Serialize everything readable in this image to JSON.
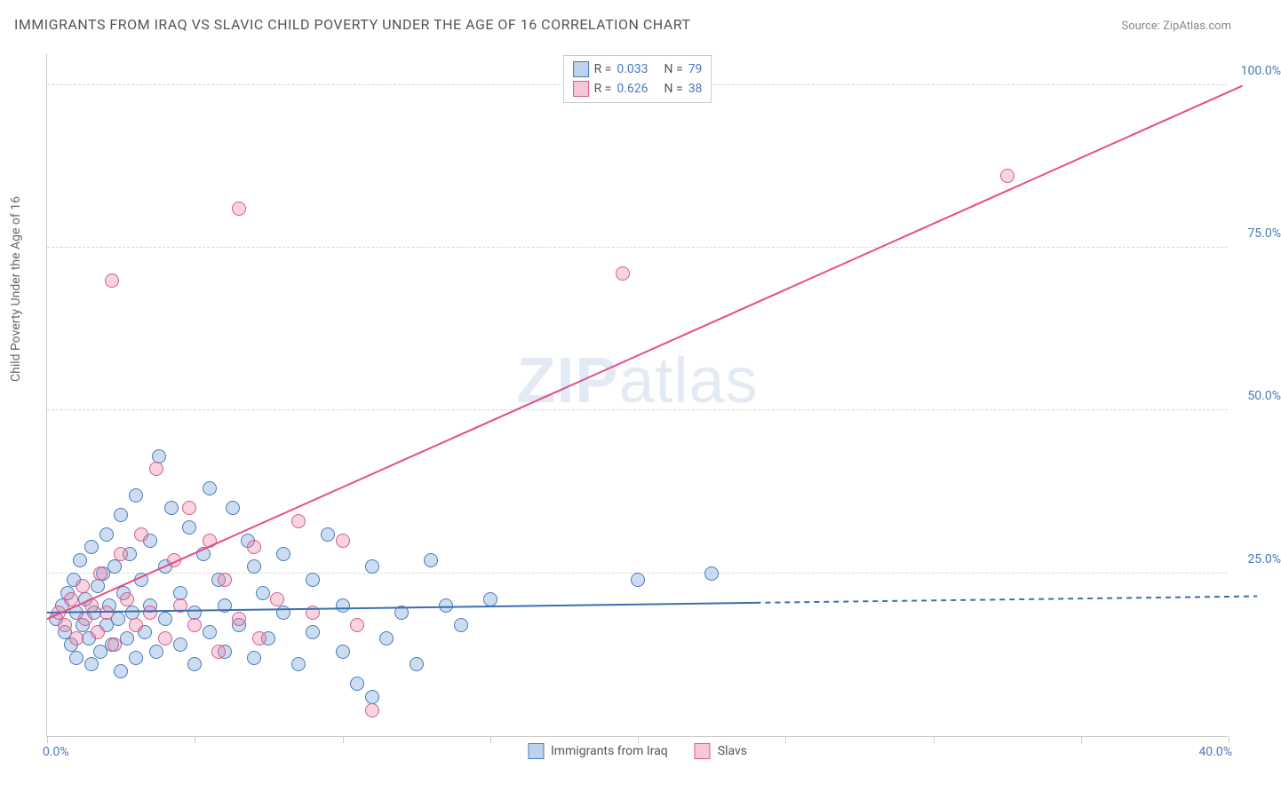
{
  "title": "IMMIGRANTS FROM IRAQ VS SLAVIC CHILD POVERTY UNDER THE AGE OF 16 CORRELATION CHART",
  "source_label": "Source: ZipAtlas.com",
  "y_axis_label": "Child Poverty Under the Age of 16",
  "watermark_bold": "ZIP",
  "watermark_light": "atlas",
  "chart": {
    "type": "scatter",
    "xlim": [
      0,
      40
    ],
    "ylim": [
      0,
      105
    ],
    "x_tick_positions": [
      0,
      5,
      10,
      15,
      20,
      25,
      30,
      35,
      40
    ],
    "x_tick_labels_shown": {
      "left": "0.0%",
      "right": "40.0%"
    },
    "y_ticks": [
      {
        "v": 25,
        "label": "25.0%"
      },
      {
        "v": 50,
        "label": "50.0%"
      },
      {
        "v": 75,
        "label": "75.0%"
      },
      {
        "v": 100,
        "label": "100.0%"
      }
    ],
    "grid_y": [
      25,
      50,
      75,
      100
    ],
    "grid_color": "#d8d8d8",
    "background_color": "#ffffff",
    "point_radius": 8,
    "point_border_width": 1.5,
    "series": [
      {
        "name": "Immigrants from Iraq",
        "fill_color": "rgba(109,158,214,0.35)",
        "stroke_color": "#4a7ab8",
        "legend_swatch_fill": "rgba(109,158,214,0.45)",
        "legend_swatch_stroke": "#4a7ab8",
        "R_label": "R =",
        "R_value": "0.033",
        "N_label": "N =",
        "N_value": "79",
        "regression": {
          "solid": {
            "x1": 0,
            "y1": 19,
            "x2": 24,
            "y2": 20.5
          },
          "dashed": {
            "x1": 24,
            "y1": 20.5,
            "x2": 41,
            "y2": 21.5
          },
          "color": "#3a6fb0",
          "width": 2
        },
        "points": [
          [
            0.3,
            18
          ],
          [
            0.5,
            20
          ],
          [
            0.6,
            16
          ],
          [
            0.7,
            22
          ],
          [
            0.8,
            14
          ],
          [
            0.9,
            24
          ],
          [
            1.0,
            19
          ],
          [
            1.0,
            12
          ],
          [
            1.1,
            27
          ],
          [
            1.2,
            17
          ],
          [
            1.3,
            21
          ],
          [
            1.4,
            15
          ],
          [
            1.5,
            29
          ],
          [
            1.5,
            11
          ],
          [
            1.6,
            19
          ],
          [
            1.7,
            23
          ],
          [
            1.8,
            13
          ],
          [
            1.9,
            25
          ],
          [
            2.0,
            17
          ],
          [
            2.0,
            31
          ],
          [
            2.1,
            20
          ],
          [
            2.2,
            14
          ],
          [
            2.3,
            26
          ],
          [
            2.4,
            18
          ],
          [
            2.5,
            34
          ],
          [
            2.5,
            10
          ],
          [
            2.6,
            22
          ],
          [
            2.7,
            15
          ],
          [
            2.8,
            28
          ],
          [
            2.9,
            19
          ],
          [
            3.0,
            12
          ],
          [
            3.0,
            37
          ],
          [
            3.2,
            24
          ],
          [
            3.3,
            16
          ],
          [
            3.5,
            30
          ],
          [
            3.5,
            20
          ],
          [
            3.7,
            13
          ],
          [
            3.8,
            43
          ],
          [
            4.0,
            26
          ],
          [
            4.0,
            18
          ],
          [
            4.2,
            35
          ],
          [
            4.5,
            22
          ],
          [
            4.5,
            14
          ],
          [
            4.8,
            32
          ],
          [
            5.0,
            19
          ],
          [
            5.0,
            11
          ],
          [
            5.3,
            28
          ],
          [
            5.5,
            38
          ],
          [
            5.5,
            16
          ],
          [
            5.8,
            24
          ],
          [
            6.0,
            20
          ],
          [
            6.0,
            13
          ],
          [
            6.3,
            35
          ],
          [
            6.5,
            17
          ],
          [
            6.8,
            30
          ],
          [
            7.0,
            26
          ],
          [
            7.0,
            12
          ],
          [
            7.3,
            22
          ],
          [
            7.5,
            15
          ],
          [
            8.0,
            28
          ],
          [
            8.0,
            19
          ],
          [
            8.5,
            11
          ],
          [
            9.0,
            24
          ],
          [
            9.0,
            16
          ],
          [
            9.5,
            31
          ],
          [
            10.0,
            13
          ],
          [
            10.0,
            20
          ],
          [
            10.5,
            8
          ],
          [
            11.0,
            26
          ],
          [
            11.0,
            6
          ],
          [
            11.5,
            15
          ],
          [
            12.0,
            19
          ],
          [
            12.5,
            11
          ],
          [
            13.0,
            27
          ],
          [
            13.5,
            20
          ],
          [
            14.0,
            17
          ],
          [
            15.0,
            21
          ],
          [
            20.0,
            24
          ],
          [
            22.5,
            25
          ]
        ]
      },
      {
        "name": "Slavs",
        "fill_color": "rgba(235,130,165,0.35)",
        "stroke_color": "#d85a8a",
        "legend_swatch_fill": "rgba(235,130,165,0.45)",
        "legend_swatch_stroke": "#d85a8a",
        "R_label": "R =",
        "R_value": "0.626",
        "N_label": "N =",
        "N_value": "38",
        "regression": {
          "solid": {
            "x1": 0,
            "y1": 18,
            "x2": 40.5,
            "y2": 100
          },
          "dashed": null,
          "color": "#e84b8a",
          "width": 2
        },
        "points": [
          [
            0.4,
            19
          ],
          [
            0.6,
            17
          ],
          [
            0.8,
            21
          ],
          [
            1.0,
            15
          ],
          [
            1.2,
            23
          ],
          [
            1.3,
            18
          ],
          [
            1.5,
            20
          ],
          [
            1.7,
            16
          ],
          [
            1.8,
            25
          ],
          [
            2.0,
            19
          ],
          [
            2.2,
            70
          ],
          [
            2.3,
            14
          ],
          [
            2.5,
            28
          ],
          [
            2.7,
            21
          ],
          [
            3.0,
            17
          ],
          [
            3.2,
            31
          ],
          [
            3.5,
            19
          ],
          [
            3.7,
            41
          ],
          [
            4.0,
            15
          ],
          [
            4.3,
            27
          ],
          [
            4.5,
            20
          ],
          [
            4.8,
            35
          ],
          [
            5.0,
            17
          ],
          [
            5.5,
            30
          ],
          [
            5.8,
            13
          ],
          [
            6.0,
            24
          ],
          [
            6.5,
            81
          ],
          [
            6.5,
            18
          ],
          [
            7.0,
            29
          ],
          [
            7.2,
            15
          ],
          [
            7.8,
            21
          ],
          [
            8.5,
            33
          ],
          [
            9.0,
            19
          ],
          [
            10.0,
            30
          ],
          [
            10.5,
            17
          ],
          [
            11.0,
            4
          ],
          [
            19.5,
            71
          ],
          [
            32.5,
            86
          ]
        ]
      }
    ]
  },
  "legend_bottom": [
    {
      "label": "Immigrants from Iraq",
      "fill": "rgba(109,158,214,0.45)",
      "stroke": "#4a7ab8"
    },
    {
      "label": "Slavs",
      "fill": "rgba(235,130,165,0.45)",
      "stroke": "#d85a8a"
    }
  ]
}
